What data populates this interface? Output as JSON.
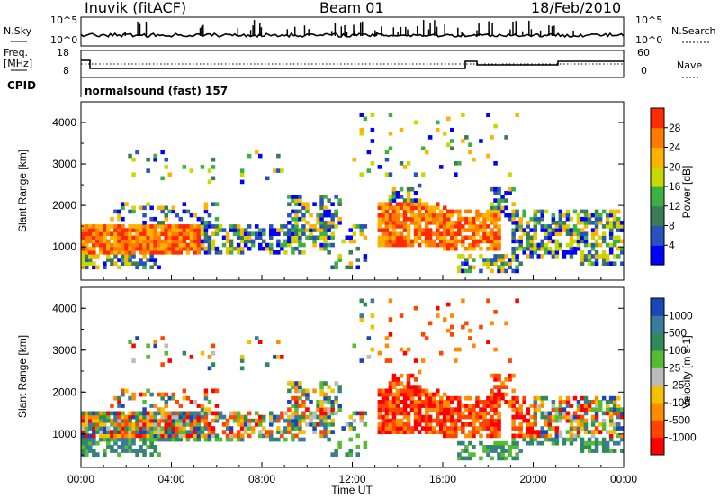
{
  "header": {
    "station": "Inuvik (fitACF)",
    "beam": "Beam 01",
    "date": "18/Feb/2010"
  },
  "strip_noise": {
    "left_label": "N.Sky",
    "right_label": "N.Search",
    "left_ticks": [
      "10^5",
      "10^0"
    ],
    "right_ticks": [
      "10^5",
      "10^0"
    ]
  },
  "strip_freq": {
    "left_label_1": "Freq.",
    "left_label_2": "[MHz]",
    "right_label": "Nave",
    "left_ticks": [
      "18",
      "8"
    ],
    "right_ticks": [
      "60",
      "0"
    ]
  },
  "cpid": {
    "label": "CPID",
    "text": "normalsound (fast) 157"
  },
  "colors": {
    "red": "#ff0000",
    "orange": "#ff8c00",
    "green": "#3cb043",
    "blue": "#1010ff"
  },
  "chart_data": [
    {
      "type": "heatmap",
      "panel": "power",
      "ylabel": "Slant Range [km]",
      "yticks": [
        "1000",
        "2000",
        "3000",
        "4000"
      ],
      "ylim": [
        200,
        4500
      ],
      "xlim_hours": [
        0,
        24
      ],
      "colorbar": {
        "label": "Power [dB]",
        "ticks": [
          "4",
          "8",
          "12",
          "16",
          "20",
          "24",
          "28"
        ],
        "colors": [
          "#0000ff",
          "#2a52be",
          "#3d7a58",
          "#3cb043",
          "#c8d800",
          "#ffb300",
          "#ff7a00",
          "#ff2a00"
        ]
      }
    },
    {
      "type": "heatmap",
      "panel": "velocity",
      "ylabel": "Slant Range [km]",
      "yticks": [
        "1000",
        "2000",
        "3000",
        "4000"
      ],
      "ylim": [
        200,
        4500
      ],
      "xlim_hours": [
        0,
        24
      ],
      "xlabel": "Time UT",
      "xticks": [
        "00:00",
        "04:00",
        "08:00",
        "12:00",
        "16:00",
        "20:00",
        "00:00"
      ],
      "colorbar": {
        "label": "Velocity [m s-1]",
        "ticks": [
          "1000",
          "500",
          "100",
          "25",
          "-25",
          "-100",
          "-500",
          "-1000"
        ],
        "colors": [
          "#1a47b8",
          "#3a7a9a",
          "#2e8b57",
          "#55bb33",
          "#bbbbbb",
          "#f5c000",
          "#ff8c00",
          "#ff4500",
          "#ff0000"
        ]
      }
    }
  ]
}
